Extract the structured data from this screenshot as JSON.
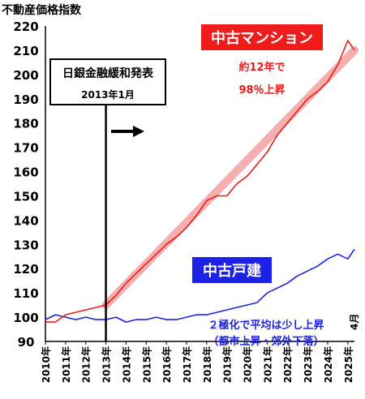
{
  "chart_data": {
    "type": "line",
    "ylabel": "不動産価格指数",
    "ylim": [
      90,
      220
    ],
    "yticks": [
      90,
      100,
      110,
      120,
      130,
      140,
      150,
      160,
      170,
      180,
      190,
      200,
      210,
      220
    ],
    "xlim": [
      2010,
      2025.33
    ],
    "xticks": [
      2010,
      2011,
      2012,
      2013,
      2014,
      2015,
      2016,
      2017,
      2018,
      2019,
      2020,
      2021,
      2022,
      2023,
      2024,
      2025
    ],
    "xtick_labels": [
      "2010年",
      "2011年",
      "2012年",
      "2013年",
      "2014年",
      "2015年",
      "2016年",
      "2017年",
      "2018年",
      "2019年",
      "2020年",
      "2021年",
      "2022年",
      "2023年",
      "2024年",
      "2025年"
    ],
    "x_end_label": "4月",
    "grid": false,
    "series": [
      {
        "name": "中古マンション",
        "color": "#ee1c1c",
        "x": [
          2010.0,
          2010.5,
          2011.0,
          2011.5,
          2012.0,
          2012.5,
          2013.0,
          2013.5,
          2014.0,
          2014.5,
          2015.0,
          2015.5,
          2016.0,
          2016.5,
          2017.0,
          2017.5,
          2018.0,
          2018.5,
          2019.0,
          2019.5,
          2020.0,
          2020.5,
          2021.0,
          2021.5,
          2022.0,
          2022.5,
          2023.0,
          2023.5,
          2024.0,
          2024.5,
          2025.0,
          2025.33
        ],
        "y": [
          98,
          98,
          101,
          102,
          103,
          104,
          105,
          109,
          114,
          118,
          122,
          126,
          130,
          133,
          137,
          142,
          148,
          150,
          150,
          155,
          158,
          163,
          168,
          175,
          180,
          185,
          190,
          193,
          197,
          204,
          214,
          210
        ]
      },
      {
        "name": "中古戸建",
        "color": "#1c22e6",
        "x": [
          2010.0,
          2010.5,
          2011.0,
          2011.5,
          2012.0,
          2012.5,
          2013.0,
          2013.5,
          2014.0,
          2014.5,
          2015.0,
          2015.5,
          2016.0,
          2016.5,
          2017.0,
          2017.5,
          2018.0,
          2018.5,
          2019.0,
          2019.5,
          2020.0,
          2020.5,
          2021.0,
          2021.5,
          2022.0,
          2022.5,
          2023.0,
          2023.5,
          2024.0,
          2024.5,
          2025.0,
          2025.33
        ],
        "y": [
          99,
          101,
          100,
          99,
          100,
          99,
          99,
          100,
          98,
          99,
          99,
          100,
          99,
          99,
          100,
          101,
          101,
          102,
          103,
          104,
          105,
          106,
          110,
          112,
          114,
          117,
          119,
          121,
          124,
          126,
          124,
          128
        ]
      },
      {
        "name": "trend",
        "color": "#f4a0a0",
        "x": [
          2013.0,
          2025.33
        ],
        "y": [
          105,
          210
        ]
      }
    ],
    "annotations": [
      {
        "text": "日銀金融緩和発表",
        "date": "2013年1月",
        "x": 2013.0
      },
      {
        "text": "約12年で",
        "text2": "98％上昇",
        "series": "中古マンション"
      },
      {
        "text": "２極化で平均は少し上昇",
        "text2": "（都市上昇・郊外下落）",
        "series": "中古戸建"
      }
    ]
  }
}
